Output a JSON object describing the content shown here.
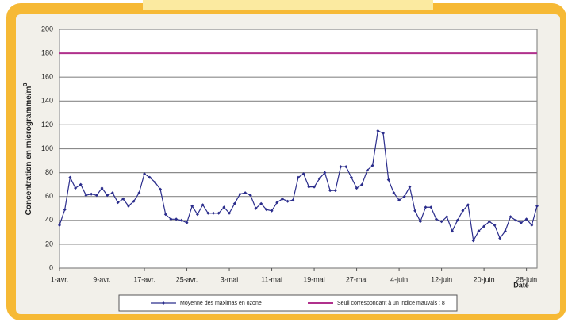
{
  "chart_data": {
    "type": "line",
    "y_label": "Concentration en microgramme/m",
    "y_label_sup": "3",
    "x_label": "Date",
    "categories": [
      "1-avr.",
      null,
      null,
      null,
      null,
      null,
      null,
      null,
      "9-avr.",
      null,
      null,
      null,
      null,
      null,
      null,
      null,
      "17-avr.",
      null,
      null,
      null,
      null,
      null,
      null,
      null,
      "25-avr.",
      null,
      null,
      null,
      null,
      null,
      null,
      null,
      "3-mai",
      null,
      null,
      null,
      null,
      null,
      null,
      null,
      "11-mai",
      null,
      null,
      null,
      null,
      null,
      null,
      null,
      "19-mai",
      null,
      null,
      null,
      null,
      null,
      null,
      null,
      "27-mai",
      null,
      null,
      null,
      null,
      null,
      null,
      null,
      "4-juin",
      null,
      null,
      null,
      null,
      null,
      null,
      null,
      "12-juin",
      null,
      null,
      null,
      null,
      null,
      null,
      null,
      "20-juin",
      null,
      null,
      null,
      null,
      null,
      null,
      null,
      "28-juin",
      null,
      null
    ],
    "series": [
      {
        "name": "Moyenne des maximas en ozone",
        "color": "#2b2d8c",
        "values": [
          36,
          49,
          76,
          67,
          70,
          61,
          62,
          61,
          67,
          61,
          63,
          55,
          58,
          52,
          56,
          63,
          79,
          76,
          72,
          66,
          45,
          41,
          41,
          40,
          38,
          52,
          45,
          53,
          46,
          46,
          46,
          51,
          46,
          54,
          62,
          63,
          61,
          50,
          54,
          49,
          48,
          55,
          58,
          56,
          57,
          76,
          79,
          68,
          68,
          75,
          80,
          65,
          65,
          85,
          85,
          76,
          67,
          70,
          82,
          86,
          115,
          113,
          74,
          63,
          57,
          60,
          68,
          48,
          39,
          51,
          51,
          41,
          39,
          43,
          31,
          40,
          48,
          53,
          23,
          31,
          35,
          39,
          36,
          25,
          31,
          43,
          40,
          38,
          41,
          36,
          52
        ]
      }
    ],
    "threshold": {
      "name": "Seuil correspondant à un indice mauvais : 8",
      "color": "#b0308c",
      "value": 180
    },
    "ylim": [
      0,
      200
    ],
    "yticks": [
      0,
      20,
      40,
      60,
      80,
      100,
      120,
      140,
      160,
      180,
      200
    ],
    "grid": true
  }
}
